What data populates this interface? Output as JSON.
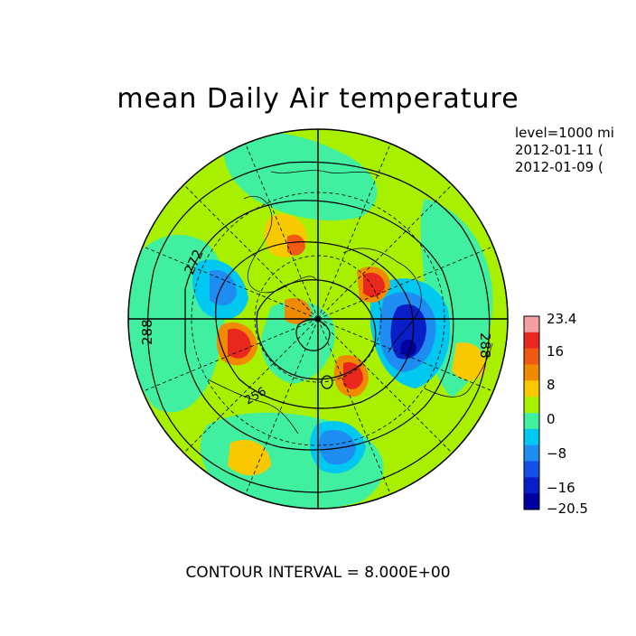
{
  "title": "mean Daily Air temperature",
  "info_lines": [
    "level=1000 mi",
    "2012-01-11 (",
    "2012-01-09 ("
  ],
  "footer": "CONTOUR INTERVAL = 8.000E+00",
  "contour_labels": [
    "272",
    "288",
    "256",
    "288"
  ],
  "colorbar": {
    "labels": [
      "23.4",
      "16",
      "8",
      "0",
      "−8",
      "−16",
      "−20.5"
    ],
    "colors": [
      "#f4a0a0",
      "#e8281e",
      "#f05a14",
      "#f08a00",
      "#f8c800",
      "#a8f000",
      "#40f0a0",
      "#00c8f0",
      "#1e8cf0",
      "#1450e6",
      "#0a1ec8",
      "#0000a0"
    ]
  },
  "palette": {
    "background_anomaly": "#a8f000",
    "cool": "#40f0a0",
    "cyan": "#00c8f0",
    "blue": "#1e8cf0",
    "deep_blue": "#0a1ec8",
    "darkest": "#0000a0",
    "yellow": "#f8c800",
    "orange": "#f08a00",
    "red_orange": "#f05a14",
    "red": "#e8281e"
  }
}
